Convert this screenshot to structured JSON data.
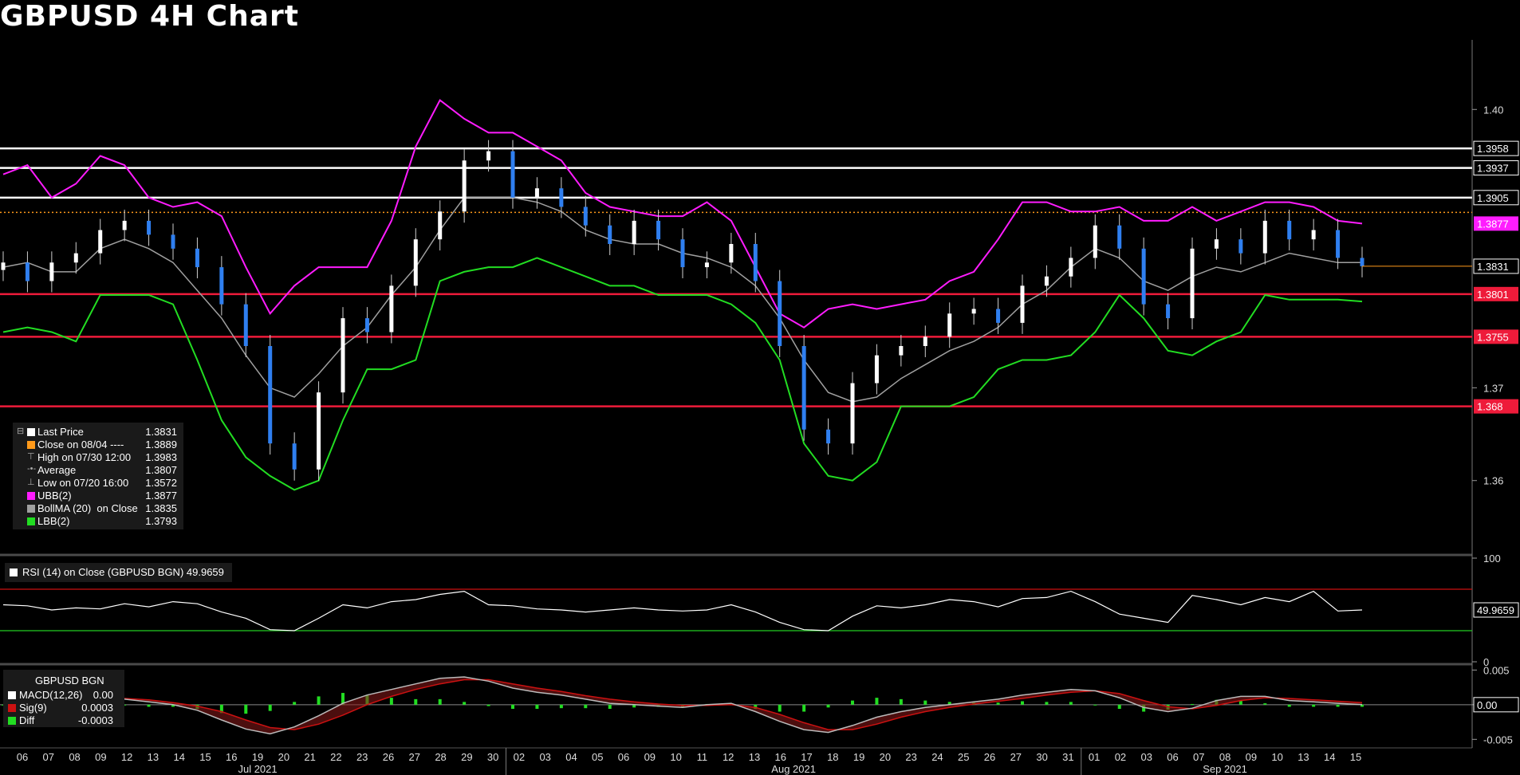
{
  "title": "GBPUSD 4H Chart",
  "colors": {
    "price_up": "#ffffff",
    "price_down": "#2f7ff0",
    "ubb": "#ff1cff",
    "bollma": "#a0a0a0",
    "lbb": "#22dd22",
    "resistance": "#ffffff",
    "support": "#ee1b3a",
    "close_line": "#ff9a1a",
    "rsi": "#ffffff",
    "rsi_upper": "#cc1111",
    "rsi_lower": "#22cc22",
    "macd": "#ffffff",
    "signal": "#cc1111",
    "diff": "#22dd22"
  },
  "legend": {
    "items": [
      {
        "label": "Last Price",
        "value": "1.3831",
        "color": "#ffffff",
        "marker": "⊟"
      },
      {
        "label": "Close on 08/04 ----",
        "value": "1.3889",
        "color": "#ff9a1a",
        "marker": ""
      },
      {
        "label": "High on 07/30 12:00",
        "value": "1.3983",
        "color": "",
        "marker": "⊤"
      },
      {
        "label": "Average",
        "value": "1.3807",
        "color": "",
        "marker": "-•-"
      },
      {
        "label": "Low on 07/20 16:00",
        "value": "1.3572",
        "color": "",
        "marker": "⊥"
      },
      {
        "label": "UBB(2)",
        "value": "1.3877",
        "color": "#ff1cff",
        "marker": ""
      },
      {
        "label": "BollMA (20)  on Close",
        "value": "1.3835",
        "color": "#a0a0a0",
        "marker": ""
      },
      {
        "label": "LBB(2)",
        "value": "1.3793",
        "color": "#22dd22",
        "marker": ""
      }
    ]
  },
  "rsi_legend": {
    "label": "RSI (14)  on Close (GBPUSD BGN) 49.9659"
  },
  "macd_legend": {
    "header": "GBPUSD BGN",
    "items": [
      {
        "label": "MACD(12,26)",
        "value": "0.00",
        "color": "#ffffff"
      },
      {
        "label": "Sig(9)",
        "value": "0.0003",
        "color": "#cc1111"
      },
      {
        "label": "Diff",
        "value": "-0.0003",
        "color": "#22dd22"
      }
    ]
  },
  "chart_data": [
    {
      "type": "candlestick",
      "panel": "price",
      "title": "GBPUSD 4H Chart",
      "ylim": [
        1.3525,
        1.4075
      ],
      "yticks": [
        "1.36",
        "1.37",
        "1.40"
      ],
      "x_dates": [
        "06",
        "07",
        "08",
        "09",
        "12",
        "13",
        "14",
        "15",
        "16",
        "19",
        "20",
        "21",
        "22",
        "23",
        "26",
        "27",
        "28",
        "29",
        "30",
        "02",
        "03",
        "04",
        "05",
        "06",
        "09",
        "10",
        "11",
        "12",
        "13",
        "16",
        "17",
        "18",
        "19",
        "20",
        "23",
        "24",
        "25",
        "26",
        "27",
        "30",
        "31",
        "01",
        "02",
        "03",
        "06",
        "07",
        "08",
        "09",
        "10",
        "13",
        "14",
        "15"
      ],
      "x_months": [
        "Jul 2021",
        "Aug 2021",
        "Sep 2021"
      ],
      "horizontal_levels": [
        {
          "value": 1.3958,
          "label": "1.3958",
          "role": "resistance"
        },
        {
          "value": 1.3937,
          "label": "1.3937",
          "role": "resistance"
        },
        {
          "value": 1.3905,
          "label": "1.3905",
          "role": "resistance"
        },
        {
          "value": 1.3801,
          "label": "1.3801",
          "role": "support"
        },
        {
          "value": 1.3755,
          "label": "1.3755",
          "role": "support"
        },
        {
          "value": 1.368,
          "label": "1.368",
          "role": "support"
        }
      ],
      "close_line": 1.3889,
      "last_price_label": "1.3831",
      "ubb_label": "1.3877",
      "closes": [
        1.3835,
        1.3815,
        1.3835,
        1.3845,
        1.387,
        1.388,
        1.3865,
        1.385,
        1.383,
        1.379,
        1.3745,
        1.364,
        1.3612,
        1.3695,
        1.3775,
        1.376,
        1.381,
        1.386,
        1.389,
        1.3945,
        1.3955,
        1.3905,
        1.3915,
        1.3895,
        1.3875,
        1.3855,
        1.388,
        1.386,
        1.383,
        1.3835,
        1.3855,
        1.3815,
        1.3745,
        1.3655,
        1.364,
        1.3705,
        1.3735,
        1.3745,
        1.3755,
        1.378,
        1.3785,
        1.377,
        1.381,
        1.382,
        1.384,
        1.3875,
        1.385,
        1.379,
        1.3775,
        1.385,
        1.386,
        1.3845,
        1.388,
        1.386,
        1.387,
        1.384,
        1.3831
      ],
      "ubb": [
        1.393,
        1.394,
        1.3905,
        1.392,
        1.395,
        1.394,
        1.3905,
        1.3895,
        1.39,
        1.3885,
        1.383,
        1.378,
        1.381,
        1.383,
        1.383,
        1.383,
        1.388,
        1.396,
        1.401,
        1.399,
        1.3975,
        1.3975,
        1.396,
        1.3945,
        1.391,
        1.3895,
        1.389,
        1.3885,
        1.3885,
        1.39,
        1.388,
        1.383,
        1.378,
        1.3765,
        1.3785,
        1.379,
        1.3785,
        1.379,
        1.3795,
        1.3815,
        1.3825,
        1.386,
        1.39,
        1.39,
        1.389,
        1.389,
        1.3895,
        1.388,
        1.388,
        1.3895,
        1.388,
        1.389,
        1.39,
        1.39,
        1.3895,
        1.388,
        1.3877
      ],
      "bollma": [
        1.383,
        1.3835,
        1.3825,
        1.3825,
        1.385,
        1.386,
        1.385,
        1.3835,
        1.3805,
        1.3775,
        1.3735,
        1.37,
        1.369,
        1.3715,
        1.3745,
        1.3765,
        1.38,
        1.383,
        1.387,
        1.3905,
        1.3905,
        1.3905,
        1.39,
        1.389,
        1.387,
        1.386,
        1.3855,
        1.3855,
        1.3845,
        1.384,
        1.383,
        1.381,
        1.3775,
        1.373,
        1.3695,
        1.3685,
        1.369,
        1.371,
        1.3725,
        1.374,
        1.375,
        1.3765,
        1.379,
        1.3805,
        1.383,
        1.385,
        1.384,
        1.3815,
        1.3805,
        1.382,
        1.383,
        1.3825,
        1.3835,
        1.3845,
        1.384,
        1.3835,
        1.3835
      ],
      "lbb": [
        1.376,
        1.3765,
        1.376,
        1.375,
        1.38,
        1.38,
        1.38,
        1.379,
        1.373,
        1.3665,
        1.3625,
        1.3605,
        1.359,
        1.36,
        1.3665,
        1.372,
        1.372,
        1.373,
        1.3815,
        1.3825,
        1.383,
        1.383,
        1.384,
        1.383,
        1.382,
        1.381,
        1.381,
        1.38,
        1.38,
        1.38,
        1.379,
        1.377,
        1.373,
        1.364,
        1.3605,
        1.36,
        1.362,
        1.368,
        1.368,
        1.368,
        1.369,
        1.372,
        1.373,
        1.373,
        1.3735,
        1.376,
        1.38,
        1.3775,
        1.374,
        1.3735,
        1.375,
        1.376,
        1.38,
        1.3795,
        1.3795,
        1.3795,
        1.3793
      ]
    },
    {
      "type": "line",
      "panel": "rsi",
      "ylim": [
        0,
        100
      ],
      "yticks": [
        "0",
        "100"
      ],
      "upper": 70,
      "lower": 30,
      "last_label": "49.9659",
      "values": [
        55,
        54,
        50,
        52,
        51,
        56,
        53,
        58,
        56,
        48,
        42,
        31,
        30,
        42,
        55,
        52,
        58,
        60,
        65,
        68,
        55,
        54,
        51,
        50,
        48,
        50,
        52,
        50,
        49,
        50,
        55,
        48,
        38,
        31,
        30,
        44,
        54,
        52,
        55,
        60,
        58,
        53,
        61,
        62,
        68,
        58,
        46,
        42,
        38,
        64,
        60,
        55,
        62,
        58,
        68,
        49,
        50
      ]
    },
    {
      "type": "line",
      "panel": "macd",
      "ylim": [
        -0.006,
        0.0055
      ],
      "yticks": [
        "-0.005",
        "0.00",
        "0.005"
      ],
      "last_label": "0.00",
      "macd": [
        0.0,
        0.0004,
        0.0008,
        0.001,
        0.0011,
        0.0008,
        0.0004,
        0.0,
        -0.0008,
        -0.0022,
        -0.0035,
        -0.0042,
        -0.0032,
        -0.0016,
        0.0002,
        0.0014,
        0.0022,
        0.003,
        0.0038,
        0.004,
        0.0034,
        0.0024,
        0.0018,
        0.0014,
        0.0008,
        0.0002,
        0.0,
        -0.0002,
        -0.0004,
        0.0,
        0.0002,
        -0.001,
        -0.0024,
        -0.0036,
        -0.004,
        -0.003,
        -0.0018,
        -0.001,
        -0.0004,
        0.0,
        0.0004,
        0.0008,
        0.0014,
        0.0018,
        0.0022,
        0.002,
        0.001,
        -0.0004,
        -0.001,
        -0.0005,
        0.0006,
        0.0012,
        0.0012,
        0.0006,
        0.0004,
        0.0002,
        0.0
      ],
      "signal": [
        0.0,
        0.0002,
        0.0005,
        0.0008,
        0.001,
        0.0009,
        0.0007,
        0.0003,
        -0.0002,
        -0.001,
        -0.0022,
        -0.0033,
        -0.0036,
        -0.0028,
        -0.0015,
        0.0,
        0.0012,
        0.0022,
        0.003,
        0.0036,
        0.0036,
        0.003,
        0.0024,
        0.0019,
        0.0013,
        0.0008,
        0.0004,
        0.0001,
        -0.0001,
        -0.0001,
        0.0,
        -0.0004,
        -0.0014,
        -0.0026,
        -0.0036,
        -0.0036,
        -0.0028,
        -0.0018,
        -0.001,
        -0.0004,
        0.0001,
        0.0005,
        0.0009,
        0.0014,
        0.0018,
        0.002,
        0.0016,
        0.0006,
        -0.0003,
        -0.0006,
        -0.0001,
        0.0006,
        0.001,
        0.0009,
        0.0007,
        0.0005,
        0.0003
      ],
      "diff": [
        0.0,
        0.0002,
        0.0003,
        0.0002,
        0.0001,
        -0.0001,
        -0.0003,
        -0.0003,
        -0.0006,
        -0.0012,
        -0.0013,
        -0.0009,
        0.0004,
        0.0012,
        0.0017,
        0.0014,
        0.001,
        0.0008,
        0.0008,
        0.0004,
        -0.0002,
        -0.0006,
        -0.0006,
        -0.0005,
        -0.0005,
        -0.0006,
        -0.0004,
        -0.0003,
        -0.0003,
        0.0001,
        0.0002,
        -0.0006,
        -0.001,
        -0.001,
        -0.0004,
        0.0006,
        0.001,
        0.0008,
        0.0006,
        0.0004,
        0.0003,
        0.0003,
        0.0005,
        0.0004,
        0.0004,
        0.0,
        -0.0006,
        -0.001,
        -0.0007,
        0.0001,
        0.0007,
        0.0006,
        0.0002,
        -0.0003,
        -0.0003,
        -0.0003,
        -0.0003
      ]
    }
  ]
}
